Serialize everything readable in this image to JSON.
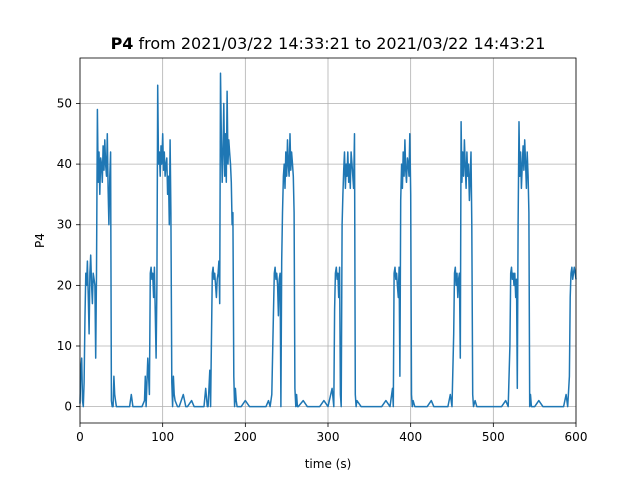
{
  "chart_data": {
    "type": "line",
    "title": {
      "bold": "P4",
      "rest": " from 2021/03/22 14:33:21 to 2021/03/22 14:43:21"
    },
    "xlabel": "time (s)",
    "ylabel": "P4",
    "xlim": [
      0,
      600
    ],
    "ylim": [
      -2.7,
      57.5
    ],
    "xticks": [
      0,
      100,
      200,
      300,
      400,
      500,
      600
    ],
    "yticks": [
      0,
      10,
      20,
      30,
      40,
      50
    ],
    "grid": true,
    "series_color": "#1f77b4",
    "series": [
      {
        "values_note": "periodic power trace, approximate",
        "points": [
          [
            0,
            0.5
          ],
          [
            1,
            6
          ],
          [
            2,
            8
          ],
          [
            3,
            1
          ],
          [
            4,
            0
          ],
          [
            5,
            4
          ],
          [
            6,
            15
          ],
          [
            7,
            22
          ],
          [
            8,
            20
          ],
          [
            9,
            24
          ],
          [
            10,
            18
          ],
          [
            11,
            12
          ],
          [
            12,
            22
          ],
          [
            13,
            25
          ],
          [
            14,
            20
          ],
          [
            15,
            17
          ],
          [
            16,
            22
          ],
          [
            17,
            21
          ],
          [
            18,
            20
          ],
          [
            19,
            8
          ],
          [
            20,
            22
          ],
          [
            21,
            49
          ],
          [
            22,
            37
          ],
          [
            23,
            42
          ],
          [
            24,
            35
          ],
          [
            25,
            41
          ],
          [
            26,
            40
          ],
          [
            27,
            37
          ],
          [
            28,
            43
          ],
          [
            29,
            39
          ],
          [
            30,
            44
          ],
          [
            31,
            40
          ],
          [
            32,
            38
          ],
          [
            33,
            45
          ],
          [
            34,
            36
          ],
          [
            35,
            30
          ],
          [
            36,
            38
          ],
          [
            37,
            42
          ],
          [
            38,
            1
          ],
          [
            39,
            0
          ],
          [
            40,
            0
          ],
          [
            41,
            5
          ],
          [
            42,
            2
          ],
          [
            43,
            1
          ],
          [
            44,
            0
          ],
          [
            45,
            0
          ],
          [
            50,
            0
          ],
          [
            55,
            0
          ],
          [
            60,
            0
          ],
          [
            62,
            2
          ],
          [
            64,
            0
          ],
          [
            70,
            0
          ],
          [
            75,
            0
          ],
          [
            78,
            1
          ],
          [
            79,
            5
          ],
          [
            80,
            0
          ],
          [
            82,
            8
          ],
          [
            84,
            2
          ],
          [
            85,
            22
          ],
          [
            86,
            23
          ],
          [
            87,
            21
          ],
          [
            88,
            22
          ],
          [
            89,
            18
          ],
          [
            90,
            23
          ],
          [
            91,
            16
          ],
          [
            92,
            8
          ],
          [
            93,
            20
          ],
          [
            94,
            53
          ],
          [
            95,
            40
          ],
          [
            96,
            42
          ],
          [
            97,
            38
          ],
          [
            98,
            43
          ],
          [
            99,
            40
          ],
          [
            100,
            45
          ],
          [
            101,
            39
          ],
          [
            102,
            42
          ],
          [
            103,
            38
          ],
          [
            104,
            40
          ],
          [
            105,
            41
          ],
          [
            106,
            35
          ],
          [
            107,
            38
          ],
          [
            108,
            30
          ],
          [
            109,
            44
          ],
          [
            110,
            32
          ],
          [
            111,
            4
          ],
          [
            112,
            0
          ],
          [
            113,
            5
          ],
          [
            114,
            2
          ],
          [
            115,
            1
          ],
          [
            118,
            0
          ],
          [
            120,
            0
          ],
          [
            125,
            2
          ],
          [
            128,
            0
          ],
          [
            130,
            0
          ],
          [
            135,
            1
          ],
          [
            138,
            0
          ],
          [
            140,
            0
          ],
          [
            145,
            0
          ],
          [
            150,
            0
          ],
          [
            152,
            3
          ],
          [
            154,
            0
          ],
          [
            155,
            0
          ],
          [
            157,
            6
          ],
          [
            158,
            0
          ],
          [
            160,
            22
          ],
          [
            161,
            23
          ],
          [
            162,
            21
          ],
          [
            163,
            22
          ],
          [
            164,
            20
          ],
          [
            165,
            18
          ],
          [
            166,
            21
          ],
          [
            167,
            22
          ],
          [
            168,
            24
          ],
          [
            169,
            17
          ],
          [
            170,
            55
          ],
          [
            171,
            44
          ],
          [
            172,
            37
          ],
          [
            173,
            42
          ],
          [
            174,
            50
          ],
          [
            175,
            38
          ],
          [
            176,
            45
          ],
          [
            177,
            37
          ],
          [
            178,
            52
          ],
          [
            179,
            40
          ],
          [
            180,
            44
          ],
          [
            181,
            42
          ],
          [
            182,
            40
          ],
          [
            183,
            37
          ],
          [
            184,
            30
          ],
          [
            185,
            32
          ],
          [
            186,
            5
          ],
          [
            187,
            0
          ],
          [
            188,
            3
          ],
          [
            189,
            1
          ],
          [
            190,
            0
          ],
          [
            195,
            0
          ],
          [
            200,
            1
          ],
          [
            205,
            0
          ],
          [
            210,
            0
          ],
          [
            215,
            0
          ],
          [
            220,
            0
          ],
          [
            225,
            0
          ],
          [
            228,
            1
          ],
          [
            230,
            0
          ],
          [
            232,
            2
          ],
          [
            234,
            15
          ],
          [
            235,
            22
          ],
          [
            236,
            23
          ],
          [
            237,
            21
          ],
          [
            238,
            22
          ],
          [
            239,
            20
          ],
          [
            240,
            15
          ],
          [
            241,
            21
          ],
          [
            242,
            22
          ],
          [
            243,
            0
          ],
          [
            244,
            24
          ],
          [
            245,
            32
          ],
          [
            246,
            38
          ],
          [
            247,
            40
          ],
          [
            248,
            36
          ],
          [
            249,
            42
          ],
          [
            250,
            38
          ],
          [
            251,
            44
          ],
          [
            252,
            40
          ],
          [
            253,
            38
          ],
          [
            254,
            45
          ],
          [
            255,
            39
          ],
          [
            256,
            42
          ],
          [
            257,
            40
          ],
          [
            258,
            38
          ],
          [
            259,
            32
          ],
          [
            260,
            3
          ],
          [
            261,
            0
          ],
          [
            262,
            2
          ],
          [
            263,
            0
          ],
          [
            264,
            0
          ],
          [
            270,
            1
          ],
          [
            275,
            0
          ],
          [
            280,
            0
          ],
          [
            285,
            0
          ],
          [
            290,
            0
          ],
          [
            295,
            1
          ],
          [
            300,
            0
          ],
          [
            305,
            3
          ],
          [
            307,
            0
          ],
          [
            308,
            16
          ],
          [
            309,
            22
          ],
          [
            310,
            23
          ],
          [
            311,
            21
          ],
          [
            312,
            22
          ],
          [
            313,
            18
          ],
          [
            314,
            23
          ],
          [
            315,
            2
          ],
          [
            316,
            0
          ],
          [
            317,
            30
          ],
          [
            318,
            35
          ],
          [
            319,
            39
          ],
          [
            320,
            42
          ],
          [
            321,
            36
          ],
          [
            322,
            40
          ],
          [
            323,
            38
          ],
          [
            324,
            42
          ],
          [
            325,
            37
          ],
          [
            326,
            40
          ],
          [
            327,
            36
          ],
          [
            328,
            42
          ],
          [
            329,
            40
          ],
          [
            330,
            38
          ],
          [
            331,
            36
          ],
          [
            332,
            45
          ],
          [
            333,
            2
          ],
          [
            334,
            0
          ],
          [
            335,
            1
          ],
          [
            340,
            0
          ],
          [
            345,
            0
          ],
          [
            350,
            0
          ],
          [
            355,
            0
          ],
          [
            360,
            0
          ],
          [
            365,
            0
          ],
          [
            370,
            1
          ],
          [
            375,
            0
          ],
          [
            378,
            3
          ],
          [
            379,
            0
          ],
          [
            380,
            22
          ],
          [
            381,
            23
          ],
          [
            382,
            21
          ],
          [
            383,
            22
          ],
          [
            384,
            20
          ],
          [
            385,
            18
          ],
          [
            386,
            23
          ],
          [
            387,
            5
          ],
          [
            388,
            34
          ],
          [
            389,
            40
          ],
          [
            390,
            36
          ],
          [
            391,
            42
          ],
          [
            392,
            38
          ],
          [
            393,
            44
          ],
          [
            394,
            39
          ],
          [
            395,
            37
          ],
          [
            396,
            41
          ],
          [
            397,
            40
          ],
          [
            398,
            38
          ],
          [
            399,
            45
          ],
          [
            400,
            35
          ],
          [
            401,
            2
          ],
          [
            402,
            0
          ],
          [
            403,
            1
          ],
          [
            405,
            0
          ],
          [
            410,
            0
          ],
          [
            415,
            0
          ],
          [
            420,
            0
          ],
          [
            425,
            1
          ],
          [
            428,
            0
          ],
          [
            430,
            0
          ],
          [
            435,
            0
          ],
          [
            440,
            0
          ],
          [
            445,
            0
          ],
          [
            448,
            2
          ],
          [
            450,
            0
          ],
          [
            452,
            12
          ],
          [
            453,
            22
          ],
          [
            454,
            23
          ],
          [
            455,
            20
          ],
          [
            456,
            22
          ],
          [
            457,
            18
          ],
          [
            458,
            21
          ],
          [
            459,
            22
          ],
          [
            460,
            8
          ],
          [
            461,
            47
          ],
          [
            462,
            37
          ],
          [
            463,
            42
          ],
          [
            464,
            38
          ],
          [
            465,
            44
          ],
          [
            466,
            40
          ],
          [
            467,
            36
          ],
          [
            468,
            42
          ],
          [
            469,
            38
          ],
          [
            470,
            40
          ],
          [
            471,
            34
          ],
          [
            472,
            38
          ],
          [
            473,
            42
          ],
          [
            474,
            30
          ],
          [
            475,
            2
          ],
          [
            476,
            0
          ],
          [
            478,
            1
          ],
          [
            480,
            0
          ],
          [
            485,
            0
          ],
          [
            490,
            0
          ],
          [
            495,
            0
          ],
          [
            500,
            0
          ],
          [
            505,
            0
          ],
          [
            510,
            0
          ],
          [
            515,
            1
          ],
          [
            518,
            0
          ],
          [
            520,
            10
          ],
          [
            521,
            22
          ],
          [
            522,
            23
          ],
          [
            523,
            21
          ],
          [
            524,
            22
          ],
          [
            525,
            20
          ],
          [
            526,
            22
          ],
          [
            527,
            18
          ],
          [
            528,
            21
          ],
          [
            529,
            3
          ],
          [
            530,
            30
          ],
          [
            531,
            47
          ],
          [
            532,
            38
          ],
          [
            533,
            42
          ],
          [
            534,
            36
          ],
          [
            535,
            40
          ],
          [
            536,
            43
          ],
          [
            537,
            39
          ],
          [
            538,
            44
          ],
          [
            539,
            40
          ],
          [
            540,
            36
          ],
          [
            541,
            42
          ],
          [
            542,
            38
          ],
          [
            543,
            32
          ],
          [
            544,
            0
          ],
          [
            545,
            2
          ],
          [
            546,
            0
          ],
          [
            550,
            0
          ],
          [
            555,
            1
          ],
          [
            560,
            0
          ],
          [
            565,
            0
          ],
          [
            570,
            0
          ],
          [
            575,
            0
          ],
          [
            580,
            0
          ],
          [
            585,
            0
          ],
          [
            588,
            2
          ],
          [
            590,
            0
          ],
          [
            592,
            5
          ],
          [
            593,
            18
          ],
          [
            594,
            22
          ],
          [
            595,
            23
          ],
          [
            596,
            21
          ],
          [
            597,
            22
          ],
          [
            598,
            23
          ],
          [
            599,
            22
          ],
          [
            600,
            21
          ]
        ]
      }
    ]
  }
}
